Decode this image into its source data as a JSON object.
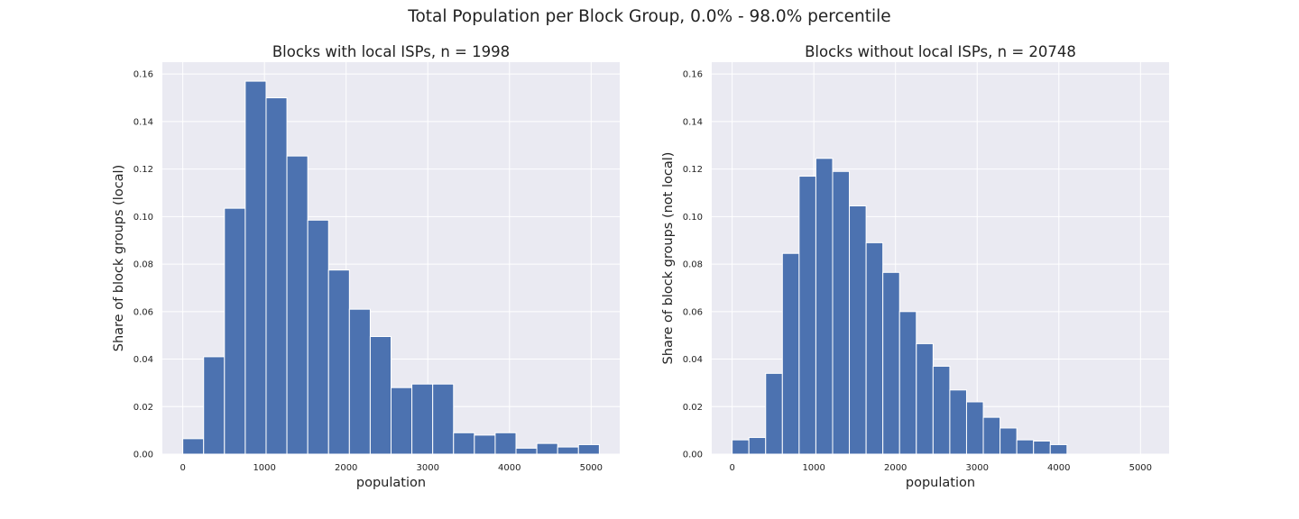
{
  "title": "Total Population per Block Group, 0.0% - 98.0% percentile",
  "chart_data": [
    {
      "type": "bar",
      "title": "Blocks with local ISPs, n = 1998",
      "xlabel": "population",
      "ylabel": "Share of block groups (local)",
      "xlim": [
        -250,
        5350
      ],
      "ylim": [
        0,
        0.165
      ],
      "xticks": [
        0,
        1000,
        2000,
        3000,
        4000,
        5000
      ],
      "yticks": [
        0.0,
        0.02,
        0.04,
        0.06,
        0.08,
        0.1,
        0.12,
        0.14,
        0.16
      ],
      "grid": true,
      "bin_start": 0,
      "bin_width": 255,
      "values": [
        0.0065,
        0.041,
        0.1035,
        0.157,
        0.15,
        0.1255,
        0.0985,
        0.0775,
        0.061,
        0.0495,
        0.028,
        0.0295,
        0.0295,
        0.009,
        0.008,
        0.009,
        0.0025,
        0.0045,
        0.003,
        0.004
      ]
    },
    {
      "type": "bar",
      "title": "Blocks without local ISPs, n = 20748",
      "xlabel": "population",
      "ylabel": "Share of block groups (not local)",
      "xlim": [
        -250,
        5350
      ],
      "ylim": [
        0,
        0.165
      ],
      "xticks": [
        0,
        1000,
        2000,
        3000,
        4000,
        5000
      ],
      "yticks": [
        0.0,
        0.02,
        0.04,
        0.06,
        0.08,
        0.1,
        0.12,
        0.14,
        0.16
      ],
      "grid": true,
      "bin_start": 0,
      "bin_width": 205,
      "values": [
        0.006,
        0.007,
        0.034,
        0.0845,
        0.117,
        0.1245,
        0.119,
        0.1045,
        0.089,
        0.0765,
        0.06,
        0.0465,
        0.037,
        0.027,
        0.022,
        0.0155,
        0.011,
        0.006,
        0.0055,
        0.004
      ]
    }
  ],
  "colors": {
    "bar": "#4c72b0",
    "bar_edge": "#ffffff",
    "plot_bg": "#eaeaf2",
    "grid": "#ffffff"
  }
}
